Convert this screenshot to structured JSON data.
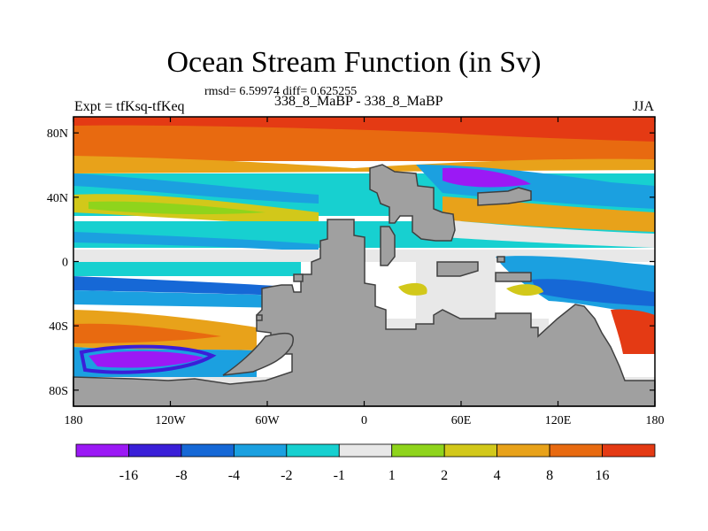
{
  "header": {
    "title": "Ocean Stream Function (in Sv)",
    "stats": "rmsd= 6.59974 diff= 0.625255",
    "expt": "Expt = tfKsq-tfKeq",
    "runs": "338_8_MaBP - 338_8_MaBP",
    "season": "JJA"
  },
  "chart_data": {
    "type": "heatmap",
    "title": "Ocean Stream Function (in Sv)",
    "subtitle": "338_8_MaBP - 338_8_MaBP",
    "xlim": [
      -180,
      180
    ],
    "ylim": [
      -90,
      90
    ],
    "x_ticks": [
      {
        "value": -180,
        "label": "180"
      },
      {
        "value": -120,
        "label": "120W"
      },
      {
        "value": -60,
        "label": "60W"
      },
      {
        "value": 0,
        "label": "0"
      },
      {
        "value": 60,
        "label": "60E"
      },
      {
        "value": 120,
        "label": "120E"
      },
      {
        "value": 180,
        "label": "180"
      }
    ],
    "y_ticks": [
      {
        "value": 80,
        "label": "80N"
      },
      {
        "value": 40,
        "label": "40N"
      },
      {
        "value": 0,
        "label": "0"
      },
      {
        "value": -40,
        "label": "40S"
      },
      {
        "value": -80,
        "label": "80S"
      }
    ],
    "colorbar": {
      "levels": [
        "-16",
        "-8",
        "-4",
        "-2",
        "-1",
        "1",
        "2",
        "4",
        "8",
        "16"
      ],
      "colors": [
        "#9b19f5",
        "#3a1fd8",
        "#1668d6",
        "#1ba0e0",
        "#17d0d0",
        "#e8e8e8",
        "#8fd41c",
        "#d2c81a",
        "#e8a21a",
        "#e86a10",
        "#e43a14"
      ]
    },
    "land_color": "#a0a0a0"
  }
}
